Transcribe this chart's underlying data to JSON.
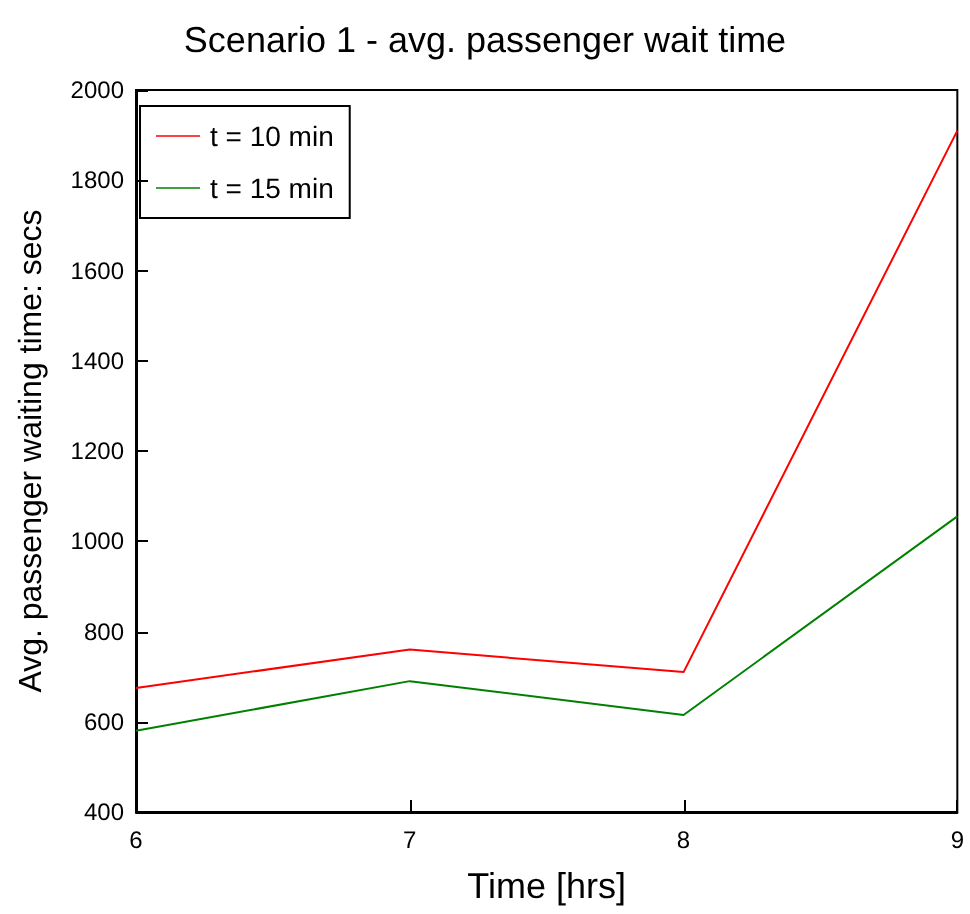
{
  "chart_data": {
    "type": "line",
    "title": "Scenario 1 - avg. passenger wait time",
    "xlabel": "Time [hrs]",
    "ylabel": "Avg. passenger waiting time: secs",
    "x": [
      6,
      7,
      8,
      9
    ],
    "series": [
      {
        "name": "t = 10 min",
        "color": "#ff0000",
        "values": [
          675,
          760,
          710,
          1910
        ]
      },
      {
        "name": "t = 15 min",
        "color": "#008000",
        "values": [
          580,
          690,
          615,
          1055
        ]
      }
    ],
    "xlim": [
      6,
      9
    ],
    "xticks": [
      6,
      7,
      8,
      9
    ],
    "ylim": [
      400,
      2000
    ],
    "yticks": [
      400,
      600,
      800,
      1000,
      1200,
      1400,
      1600,
      1800,
      2000
    ],
    "legend": "top left",
    "marker": "none",
    "line_style": "solid"
  }
}
